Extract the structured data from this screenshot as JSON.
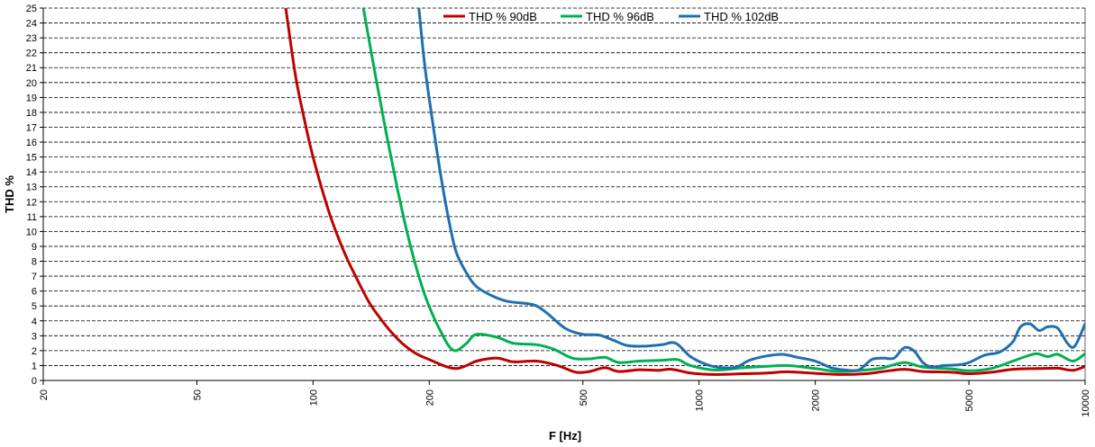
{
  "chart_data": {
    "type": "line",
    "title": "",
    "xlabel": "F [Hz]",
    "ylabel": "THD %",
    "x_scale": "log",
    "xlim": [
      20,
      10000
    ],
    "ylim": [
      0,
      25
    ],
    "x_ticks": [
      "20",
      "50",
      "100",
      "200",
      "500",
      "1000",
      "2000",
      "5000",
      "10000"
    ],
    "y_ticks": [
      "0",
      "1",
      "2",
      "3",
      "4",
      "5",
      "6",
      "7",
      "8",
      "9",
      "10",
      "11",
      "12",
      "13",
      "14",
      "15",
      "16",
      "17",
      "18",
      "19",
      "20",
      "21",
      "22",
      "23",
      "24",
      "25"
    ],
    "grid": "horizontal dashed",
    "legend_position": "top-center",
    "series": [
      {
        "name": "THD % 90dB",
        "color": "#c00000",
        "points": [
          [
            85,
            25
          ],
          [
            90,
            20.5
          ],
          [
            95,
            17.5
          ],
          [
            100,
            15
          ],
          [
            110,
            11.3
          ],
          [
            120,
            8.7
          ],
          [
            130,
            6.8
          ],
          [
            140,
            5.2
          ],
          [
            150,
            4.1
          ],
          [
            160,
            3.2
          ],
          [
            170,
            2.5
          ],
          [
            185,
            1.8
          ],
          [
            200,
            1.4
          ],
          [
            220,
            0.95
          ],
          [
            235,
            0.8
          ],
          [
            250,
            1.0
          ],
          [
            265,
            1.3
          ],
          [
            300,
            1.5
          ],
          [
            330,
            1.25
          ],
          [
            380,
            1.3
          ],
          [
            430,
            1.0
          ],
          [
            480,
            0.55
          ],
          [
            520,
            0.6
          ],
          [
            570,
            0.85
          ],
          [
            620,
            0.6
          ],
          [
            700,
            0.72
          ],
          [
            780,
            0.68
          ],
          [
            850,
            0.75
          ],
          [
            950,
            0.5
          ],
          [
            1100,
            0.4
          ],
          [
            1300,
            0.45
          ],
          [
            1500,
            0.5
          ],
          [
            1700,
            0.58
          ],
          [
            2000,
            0.48
          ],
          [
            2300,
            0.4
          ],
          [
            2700,
            0.45
          ],
          [
            3000,
            0.6
          ],
          [
            3400,
            0.75
          ],
          [
            3800,
            0.6
          ],
          [
            4500,
            0.55
          ],
          [
            5000,
            0.45
          ],
          [
            5700,
            0.55
          ],
          [
            6500,
            0.75
          ],
          [
            7500,
            0.8
          ],
          [
            8500,
            0.82
          ],
          [
            9300,
            0.68
          ],
          [
            10000,
            0.95
          ]
        ]
      },
      {
        "name": "THD % 96dB",
        "color": "#00b050",
        "points": [
          [
            135,
            25
          ],
          [
            145,
            20.5
          ],
          [
            155,
            16.5
          ],
          [
            165,
            13
          ],
          [
            175,
            10
          ],
          [
            185,
            7.6
          ],
          [
            195,
            5.7
          ],
          [
            205,
            4.3
          ],
          [
            215,
            3.2
          ],
          [
            225,
            2.3
          ],
          [
            235,
            2.0
          ],
          [
            250,
            2.5
          ],
          [
            265,
            3.1
          ],
          [
            300,
            2.9
          ],
          [
            330,
            2.5
          ],
          [
            380,
            2.4
          ],
          [
            420,
            2.1
          ],
          [
            470,
            1.5
          ],
          [
            520,
            1.45
          ],
          [
            570,
            1.55
          ],
          [
            620,
            1.2
          ],
          [
            700,
            1.3
          ],
          [
            800,
            1.35
          ],
          [
            880,
            1.4
          ],
          [
            950,
            1.0
          ],
          [
            1100,
            0.7
          ],
          [
            1300,
            0.85
          ],
          [
            1500,
            0.95
          ],
          [
            1700,
            1.0
          ],
          [
            2000,
            0.8
          ],
          [
            2300,
            0.6
          ],
          [
            2700,
            0.7
          ],
          [
            3000,
            0.85
          ],
          [
            3400,
            1.2
          ],
          [
            3800,
            0.9
          ],
          [
            4500,
            0.78
          ],
          [
            5000,
            0.65
          ],
          [
            5700,
            0.8
          ],
          [
            6500,
            1.3
          ],
          [
            7000,
            1.6
          ],
          [
            7500,
            1.8
          ],
          [
            8000,
            1.6
          ],
          [
            8500,
            1.75
          ],
          [
            9300,
            1.3
          ],
          [
            10000,
            1.8
          ]
        ]
      },
      {
        "name": "THD % 102dB",
        "color": "#1f6fb0",
        "points": [
          [
            188,
            25
          ],
          [
            195,
            21
          ],
          [
            205,
            17
          ],
          [
            215,
            13.5
          ],
          [
            225,
            10.7
          ],
          [
            235,
            8.6
          ],
          [
            250,
            7.2
          ],
          [
            265,
            6.3
          ],
          [
            290,
            5.7
          ],
          [
            320,
            5.3
          ],
          [
            370,
            5.1
          ],
          [
            400,
            4.6
          ],
          [
            450,
            3.5
          ],
          [
            500,
            3.1
          ],
          [
            550,
            3.05
          ],
          [
            600,
            2.7
          ],
          [
            650,
            2.35
          ],
          [
            720,
            2.3
          ],
          [
            800,
            2.4
          ],
          [
            870,
            2.5
          ],
          [
            950,
            1.6
          ],
          [
            1050,
            1.05
          ],
          [
            1150,
            0.85
          ],
          [
            1250,
            0.9
          ],
          [
            1350,
            1.35
          ],
          [
            1500,
            1.65
          ],
          [
            1650,
            1.75
          ],
          [
            1800,
            1.55
          ],
          [
            2000,
            1.3
          ],
          [
            2200,
            0.85
          ],
          [
            2400,
            0.7
          ],
          [
            2600,
            0.72
          ],
          [
            2800,
            1.4
          ],
          [
            3000,
            1.5
          ],
          [
            3200,
            1.5
          ],
          [
            3400,
            2.2
          ],
          [
            3600,
            2.0
          ],
          [
            3800,
            1.2
          ],
          [
            4000,
            0.9
          ],
          [
            4300,
            1.0
          ],
          [
            4700,
            1.05
          ],
          [
            5000,
            1.2
          ],
          [
            5500,
            1.7
          ],
          [
            6000,
            1.9
          ],
          [
            6500,
            2.6
          ],
          [
            6800,
            3.6
          ],
          [
            7200,
            3.8
          ],
          [
            7600,
            3.35
          ],
          [
            8000,
            3.6
          ],
          [
            8500,
            3.5
          ],
          [
            9000,
            2.5
          ],
          [
            9400,
            2.3
          ],
          [
            10000,
            3.8
          ]
        ]
      }
    ]
  }
}
